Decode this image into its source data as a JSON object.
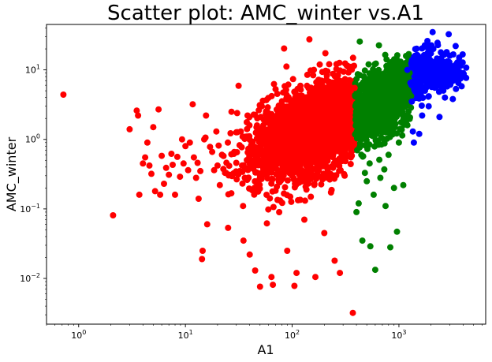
{
  "chart_data": {
    "type": "scatter",
    "title": "Scatter plot: AMC_winter vs.A1",
    "xlabel": "A1",
    "ylabel": "AMC_winter",
    "x_scale": "log",
    "y_scale": "log",
    "xlim": [
      0.5,
      6500
    ],
    "ylim": [
      0.0022,
      45
    ],
    "grid": false,
    "x_ticks": [
      {
        "value": 1,
        "base": "10",
        "exp": "0"
      },
      {
        "value": 10,
        "base": "10",
        "exp": "1"
      },
      {
        "value": 100,
        "base": "10",
        "exp": "2"
      },
      {
        "value": 1000,
        "base": "10",
        "exp": "3"
      }
    ],
    "y_ticks": [
      {
        "value": 0.01,
        "base": "10",
        "exp": "−2"
      },
      {
        "value": 0.1,
        "base": "10",
        "exp": "−1"
      },
      {
        "value": 1,
        "base": "10",
        "exp": "0"
      },
      {
        "value": 10,
        "base": "10",
        "exp": "1"
      }
    ],
    "series": [
      {
        "color": "#ff0000",
        "points": [
          [
            0.72,
            4.4
          ],
          [
            2.1,
            0.081
          ],
          [
            3.0,
            1.4
          ],
          [
            3.5,
            2.6
          ],
          [
            3.6,
            2.2
          ],
          [
            3.7,
            0.16
          ],
          [
            4.0,
            0.45
          ],
          [
            4.2,
            0.55
          ],
          [
            4.4,
            0.9
          ],
          [
            4.6,
            0.42
          ],
          [
            4.8,
            0.32
          ],
          [
            5.0,
            1.5
          ],
          [
            5.2,
            0.18
          ],
          [
            5.6,
            2.7
          ],
          [
            5.8,
            0.16
          ],
          [
            6.0,
            0.58
          ],
          [
            6.3,
            0.23
          ],
          [
            6.6,
            0.39
          ],
          [
            7.0,
            0.31
          ],
          [
            7.4,
            0.62
          ],
          [
            7.6,
            0.43
          ],
          [
            8.0,
            0.16
          ],
          [
            8.4,
            0.56
          ],
          [
            8.9,
            0.29
          ],
          [
            9.3,
            1.0
          ],
          [
            9.6,
            0.45
          ],
          [
            10.0,
            0.8
          ],
          [
            10.6,
            0.36
          ],
          [
            11.0,
            0.9
          ],
          [
            11.7,
            3.2
          ],
          [
            12.0,
            0.55
          ],
          [
            12.6,
            0.28
          ],
          [
            13.0,
            0.46
          ],
          [
            13.3,
            0.14
          ],
          [
            13.8,
            0.35
          ],
          [
            14.3,
            0.019
          ],
          [
            14.5,
            0.025
          ],
          [
            15.0,
            1.0
          ],
          [
            15.6,
            2.2
          ],
          [
            16.0,
            0.06
          ],
          [
            17.0,
            0.78
          ],
          [
            17.8,
            0.66
          ],
          [
            18.6,
            0.36
          ],
          [
            19.5,
            1.3
          ],
          [
            20.0,
            0.42
          ],
          [
            21.0,
            0.22
          ],
          [
            22.0,
            0.6
          ],
          [
            23.5,
            0.33
          ],
          [
            25.0,
            0.9
          ],
          [
            26.0,
            0.31
          ],
          [
            27.0,
            2.5
          ],
          [
            28.5,
            0.62
          ],
          [
            30.0,
            0.46
          ],
          [
            31.5,
            5.9
          ],
          [
            33.0,
            1.3
          ],
          [
            35.0,
            0.035
          ],
          [
            36.0,
            0.28
          ],
          [
            38.0,
            1.1
          ],
          [
            40.0,
            0.022
          ],
          [
            42.0,
            0.7
          ],
          [
            45.0,
            0.013
          ],
          [
            47.0,
            0.23
          ],
          [
            50.0,
            0.0076
          ],
          [
            52.0,
            3.0
          ],
          [
            55.0,
            0.45
          ],
          [
            58.0,
            0.062
          ],
          [
            60.0,
            0.9
          ],
          [
            64.0,
            0.0105
          ],
          [
            66.0,
            0.0081
          ],
          [
            70.0,
            1.6
          ],
          [
            74.0,
            0.35
          ],
          [
            80.0,
            0.7
          ],
          [
            84.0,
            20.3
          ],
          [
            90.0,
            0.025
          ],
          [
            96.0,
            0.15
          ],
          [
            100.0,
            0.55
          ],
          [
            105.0,
            0.0078
          ],
          [
            110.0,
            0.012
          ],
          [
            118.0,
            0.4
          ],
          [
            125.0,
            1.3
          ],
          [
            130.0,
            0.07
          ],
          [
            138.0,
            0.8
          ],
          [
            145.0,
            27.5
          ],
          [
            155.0,
            0.3
          ],
          [
            165.0,
            0.0105
          ],
          [
            180.0,
            3.0
          ],
          [
            200.0,
            0.045
          ],
          [
            225.0,
            1.5
          ],
          [
            250.0,
            0.018
          ],
          [
            280.0,
            0.012
          ],
          [
            310.0,
            0.3
          ],
          [
            340.0,
            0.85
          ],
          [
            370.0,
            0.0032
          ],
          [
            385.0,
            5.5
          ]
        ]
      },
      {
        "color": "#008000",
        "points": [
          [
            392,
            3.0
          ],
          [
            400,
            0.09
          ],
          [
            410,
            1.6
          ],
          [
            420,
            0.12
          ],
          [
            430,
            25.5
          ],
          [
            445,
            0.6
          ],
          [
            455,
            0.035
          ],
          [
            470,
            8.0
          ],
          [
            480,
            0.33
          ],
          [
            500,
            0.25
          ],
          [
            520,
            12.0
          ],
          [
            540,
            0.029
          ],
          [
            560,
            2.0
          ],
          [
            580,
            0.16
          ],
          [
            600,
            0.0133
          ],
          [
            620,
            0.9
          ],
          [
            650,
            22.5
          ],
          [
            670,
            0.28
          ],
          [
            700,
            4.0
          ],
          [
            730,
            0.37
          ],
          [
            750,
            0.11
          ],
          [
            780,
            1.3
          ],
          [
            800,
            0.6
          ],
          [
            830,
            0.028
          ],
          [
            860,
            6.0
          ],
          [
            900,
            0.2
          ],
          [
            930,
            2.6
          ],
          [
            960,
            0.047
          ],
          [
            1000,
            0.9
          ],
          [
            1050,
            11.0
          ],
          [
            1100,
            0.22
          ],
          [
            1150,
            3.0
          ],
          [
            1200,
            1.6
          ],
          [
            1260,
            9.0
          ],
          [
            1300,
            4.2
          ]
        ]
      },
      {
        "color": "#0000ff",
        "points": [
          [
            1200,
            10.0
          ],
          [
            1280,
            6.5
          ],
          [
            1320,
            3.5
          ],
          [
            1350,
            1.3
          ],
          [
            1380,
            0.9
          ],
          [
            1420,
            16.0
          ],
          [
            1500,
            9.0
          ],
          [
            1550,
            1.2
          ],
          [
            1600,
            4.5
          ],
          [
            1650,
            2.2
          ],
          [
            1700,
            12.0
          ],
          [
            1750,
            22.5
          ],
          [
            1800,
            7.0
          ],
          [
            1850,
            26.0
          ],
          [
            1900,
            3.0
          ],
          [
            1950,
            14.0
          ],
          [
            2000,
            10.0
          ],
          [
            2100,
            20.0
          ],
          [
            2200,
            6.0
          ],
          [
            2300,
            24.5
          ],
          [
            2400,
            2.1
          ],
          [
            2500,
            13.0
          ],
          [
            2600,
            8.5
          ],
          [
            2700,
            4.0
          ],
          [
            2800,
            18.0
          ],
          [
            2900,
            11.0
          ],
          [
            3000,
            16.0
          ],
          [
            3200,
            3.8
          ],
          [
            3400,
            22.0
          ],
          [
            3500,
            12.5
          ],
          [
            3600,
            6.5
          ],
          [
            3800,
            8.4
          ],
          [
            4000,
            8.3
          ]
        ]
      }
    ]
  }
}
